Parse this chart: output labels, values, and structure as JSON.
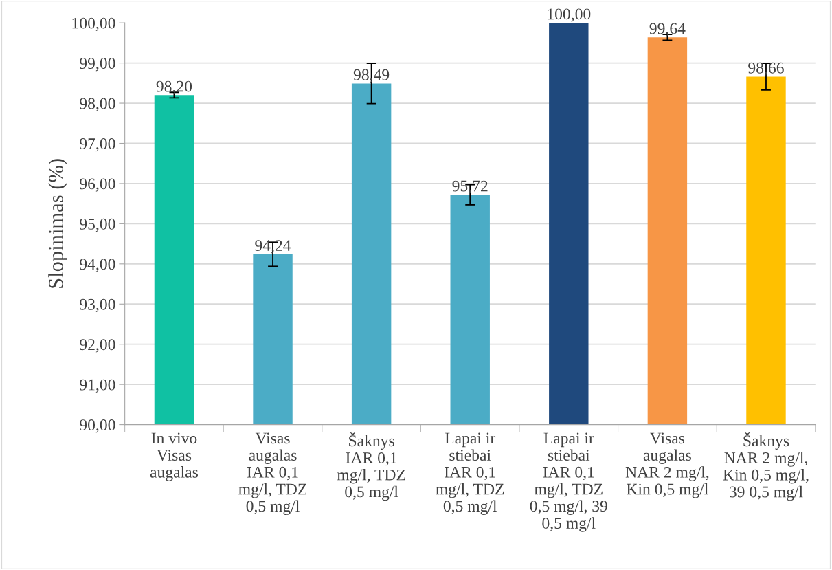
{
  "chart_data": {
    "type": "bar",
    "ylabel": "Slopinimas (%)",
    "categories": [
      "In vivo\nVisas\naugalas",
      "Visas\naugalas\nIAR 0,1\nmg/l, TDZ\n0,5 mg/l",
      "Šaknys\nIAR 0,1\nmg/l, TDZ\n0,5 mg/l",
      "Lapai ir\nstiebai\nIAR 0,1\nmg/l, TDZ\n0,5 mg/l",
      "Lapai ir\nstiebai\nIAR 0,1\nmg/l, TDZ\n0,5 mg/l, 39\n0,5 mg/l",
      "Visas\naugalas\nNAR 2 mg/l,\nKin 0,5 mg/l",
      "Šaknys\nNAR 2 mg/l,\nKin 0,5 mg/l,\n39 0,5 mg/l"
    ],
    "values": [
      98.2,
      94.24,
      98.49,
      95.72,
      100.0,
      99.64,
      98.66
    ],
    "value_labels": [
      "98,20",
      "94,24",
      "98,49",
      "95,72",
      "100,00",
      "99,64",
      "98,66"
    ],
    "errors": [
      0.07,
      0.3,
      0.5,
      0.25,
      0,
      0.07,
      0.33
    ],
    "colors": [
      "#10c1a3",
      "#4bacc6",
      "#4bacc6",
      "#4bacc6",
      "#1f497d",
      "#f79646",
      "#ffc000"
    ],
    "ylim": [
      90,
      100
    ],
    "yticks": [
      {
        "value": 90,
        "label": "90,00"
      },
      {
        "value": 91,
        "label": "91,00"
      },
      {
        "value": 92,
        "label": "92,00"
      },
      {
        "value": 93,
        "label": "93,00"
      },
      {
        "value": 94,
        "label": "94,00"
      },
      {
        "value": 95,
        "label": "95,00"
      },
      {
        "value": 96,
        "label": "96,00"
      },
      {
        "value": 97,
        "label": "97,00"
      },
      {
        "value": 98,
        "label": "98,00"
      },
      {
        "value": 99,
        "label": "99,00"
      },
      {
        "value": 100,
        "label": "100,00"
      }
    ],
    "grid": "y",
    "legend": false
  }
}
